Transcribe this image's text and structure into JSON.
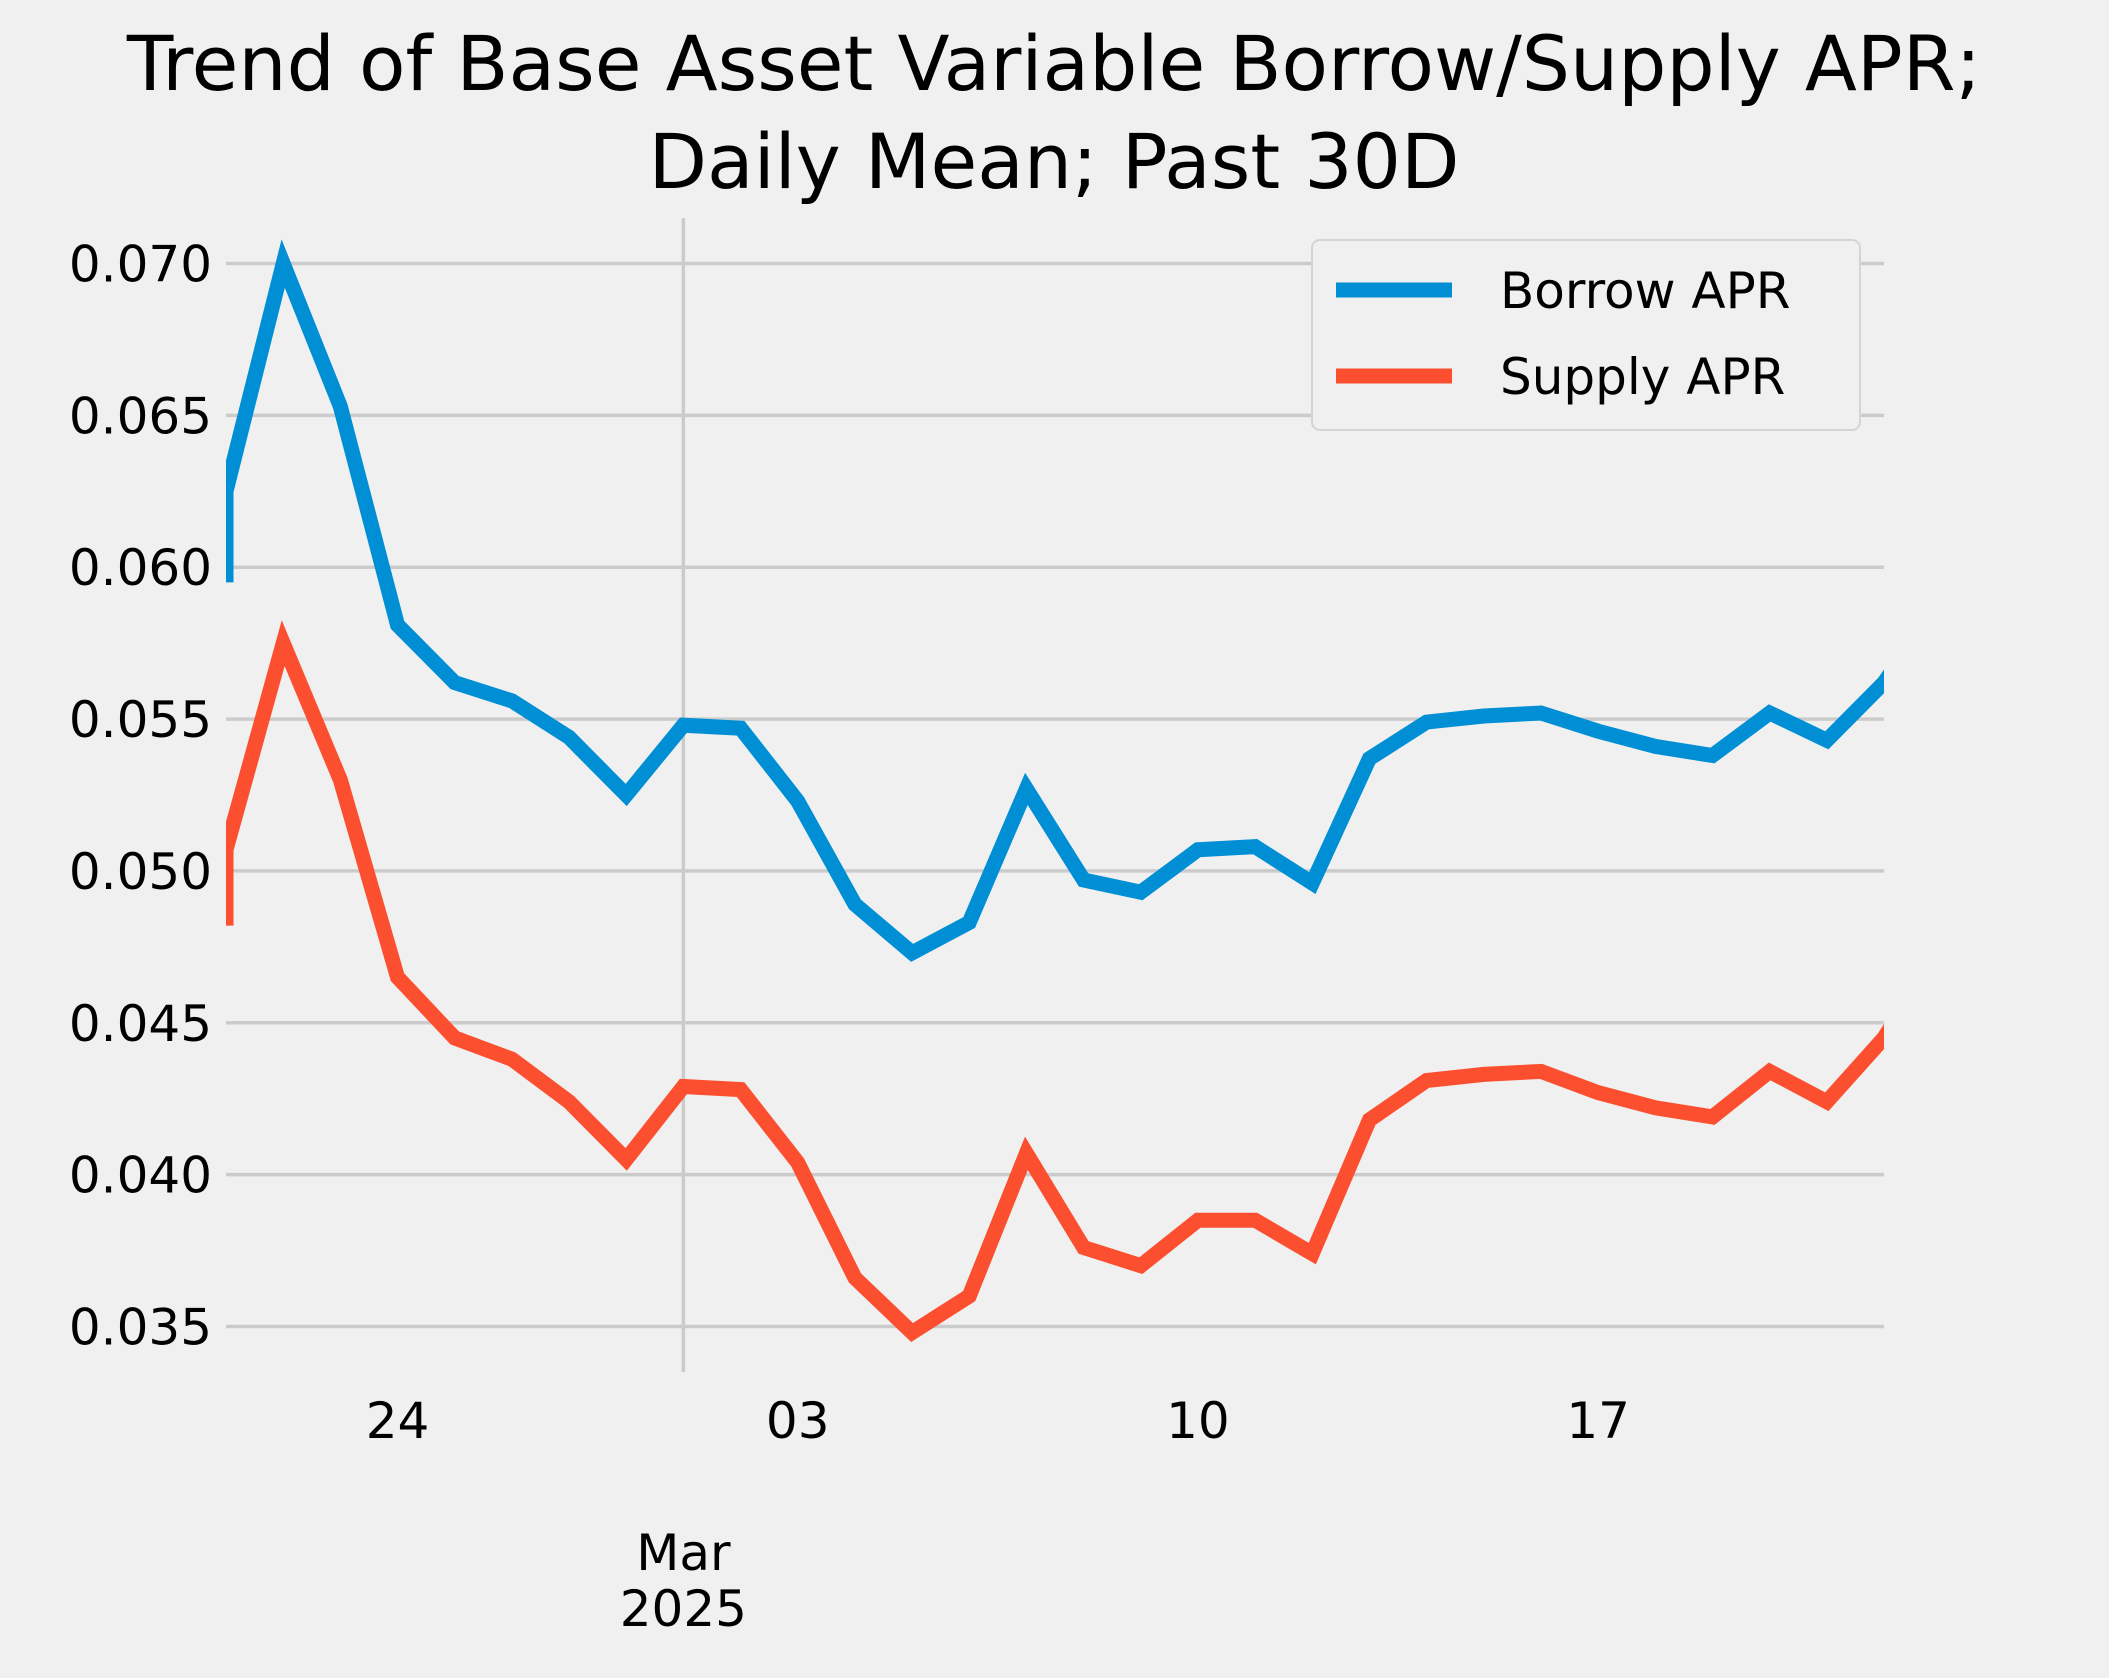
{
  "chart_data": {
    "type": "line",
    "title": "Trend of Base Asset Variable Borrow/Supply APR; Daily Mean; Past 30D",
    "title_lines": [
      "Trend of Base Asset Variable Borrow/Supply APR;",
      "Daily Mean; Past 30D"
    ],
    "xlabel": "",
    "ylabel": "",
    "x": [
      "2025-02-21",
      "2025-02-22",
      "2025-02-23",
      "2025-02-24",
      "2025-02-25",
      "2025-02-26",
      "2025-02-27",
      "2025-02-28",
      "2025-03-01",
      "2025-03-02",
      "2025-03-03",
      "2025-03-04",
      "2025-03-05",
      "2025-03-06",
      "2025-03-07",
      "2025-03-08",
      "2025-03-09",
      "2025-03-10",
      "2025-03-11",
      "2025-03-12",
      "2025-03-13",
      "2025-03-14",
      "2025-03-15",
      "2025-03-16",
      "2025-03-17",
      "2025-03-18",
      "2025-03-19",
      "2025-03-20",
      "2025-03-21",
      "2025-03-22"
    ],
    "xlim": [
      "2025-02-21",
      "2025-03-22"
    ],
    "x_start_value": {
      "borrow": 0.0595,
      "supply": 0.0482
    },
    "ylim": [
      0.0335,
      0.0715
    ],
    "yticks": [
      "0.035",
      "0.040",
      "0.045",
      "0.050",
      "0.055",
      "0.060",
      "0.065",
      "0.070"
    ],
    "xticks": [
      {
        "date": "2025-02-24",
        "label": "24"
      },
      {
        "date": "2025-03-03",
        "label": "03"
      },
      {
        "date": "2025-03-10",
        "label": "10"
      },
      {
        "date": "2025-03-17",
        "label": "17"
      }
    ],
    "x_major_tick": {
      "date": "2025-03-01",
      "label_lines": [
        "Mar",
        "2025"
      ]
    },
    "grid": true,
    "legend_position": "top-right",
    "series": [
      {
        "name": "Borrow APR",
        "color": "#008fd5",
        "values": [
          0.0625,
          0.07,
          0.0653,
          0.0581,
          0.0562,
          0.0556,
          0.0544,
          0.0525,
          0.0548,
          0.0547,
          0.0523,
          0.0489,
          0.0473,
          0.0483,
          0.0527,
          0.0497,
          0.0493,
          0.0507,
          0.0508,
          0.0496,
          0.0537,
          0.0549,
          0.0551,
          0.0552,
          0.0546,
          0.0541,
          0.0538,
          0.0552,
          0.0543,
          0.0562
        ]
      },
      {
        "name": "Supply APR",
        "color": "#fc4f30",
        "values": [
          0.0507,
          0.0575,
          0.053,
          0.0465,
          0.0445,
          0.0438,
          0.0424,
          0.0405,
          0.0429,
          0.0428,
          0.0404,
          0.0366,
          0.0348,
          0.036,
          0.0407,
          0.0376,
          0.037,
          0.0385,
          0.0385,
          0.0374,
          0.0418,
          0.0431,
          0.0433,
          0.0434,
          0.0427,
          0.0422,
          0.0419,
          0.0434,
          0.0424,
          0.0445
        ]
      }
    ]
  }
}
